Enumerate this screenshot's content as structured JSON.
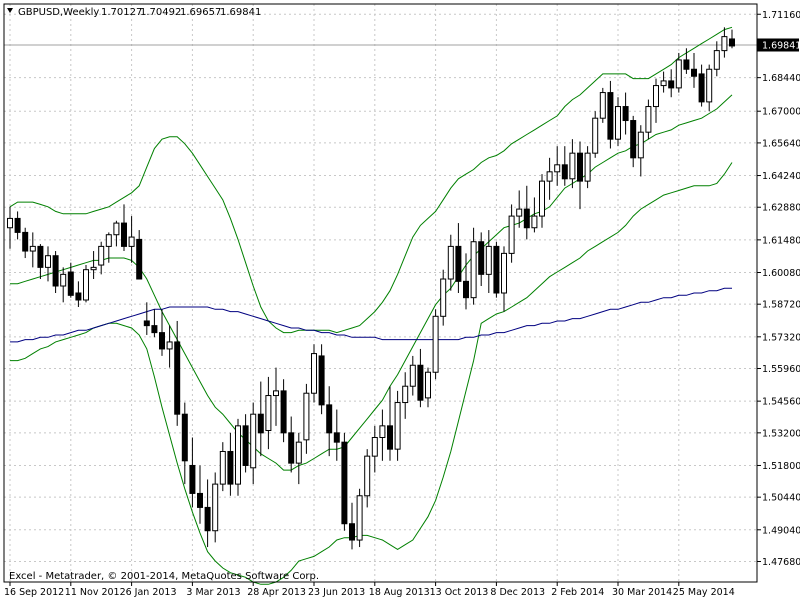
{
  "chart_data": {
    "type": "candlestick",
    "symbol": "GBPUSD,Weekly",
    "ohlc_header": {
      "open": "1.70127",
      "high": "1.70492",
      "low": "1.69657",
      "close": "1.69841"
    },
    "current_price_label": "1.69841",
    "copyright": "Excel - Metatrader, © 2001-2014, MetaQuotes Software Corp.",
    "ylim": [
      1.468,
      1.716
    ],
    "y_ticks": [
      "1.71160",
      "1.69841",
      "1.68440",
      "1.67000",
      "1.65640",
      "1.64240",
      "1.62880",
      "1.61480",
      "1.60080",
      "1.58720",
      "1.57320",
      "1.55960",
      "1.54560",
      "1.53200",
      "1.51800",
      "1.50440",
      "1.49040",
      "1.47680"
    ],
    "y_tick_values": [
      1.7116,
      1.69841,
      1.6844,
      1.67,
      1.6564,
      1.6424,
      1.6288,
      1.6148,
      1.6008,
      1.5872,
      1.5732,
      1.5596,
      1.5456,
      1.532,
      1.518,
      1.5044,
      1.4904,
      1.4768
    ],
    "x_ticks": [
      "16 Sep 2012",
      "11 Nov 2012",
      "6 Jan 2013",
      "3 Mar 2013",
      "28 Apr 2013",
      "23 Jun 2013",
      "18 Aug 2013",
      "13 Oct 2013",
      "8 Dec 2013",
      "2 Feb 2014",
      "30 Mar 2014",
      "25 May 2014"
    ],
    "x_tick_index": [
      0,
      8,
      16,
      24,
      32,
      40,
      48,
      56,
      64,
      72,
      80,
      88
    ],
    "candles": [
      [
        1.62,
        1.629,
        1.611,
        1.624
      ],
      [
        1.624,
        1.627,
        1.615,
        1.618
      ],
      [
        1.618,
        1.62,
        1.607,
        1.61
      ],
      [
        1.61,
        1.618,
        1.603,
        1.612
      ],
      [
        1.612,
        1.613,
        1.598,
        1.603
      ],
      [
        1.603,
        1.612,
        1.597,
        1.608
      ],
      [
        1.608,
        1.61,
        1.592,
        1.595
      ],
      [
        1.595,
        1.603,
        1.588,
        1.6
      ],
      [
        1.601,
        1.605,
        1.59,
        1.591
      ],
      [
        1.592,
        1.597,
        1.586,
        1.589
      ],
      [
        1.589,
        1.604,
        1.588,
        1.602
      ],
      [
        1.602,
        1.61,
        1.598,
        1.603
      ],
      [
        1.604,
        1.614,
        1.6,
        1.612
      ],
      [
        1.612,
        1.618,
        1.605,
        1.617
      ],
      [
        1.617,
        1.623,
        1.612,
        1.622
      ],
      [
        1.622,
        1.63,
        1.61,
        1.612
      ],
      [
        1.612,
        1.625,
        1.605,
        1.616
      ],
      [
        1.615,
        1.619,
        1.598,
        1.598
      ],
      [
        1.58,
        1.588,
        1.574,
        1.578
      ],
      [
        1.578,
        1.585,
        1.573,
        1.575
      ],
      [
        1.575,
        1.585,
        1.565,
        1.568
      ],
      [
        1.568,
        1.578,
        1.56,
        1.571
      ],
      [
        1.571,
        1.58,
        1.535,
        1.54
      ],
      [
        1.54,
        1.545,
        1.51,
        1.52
      ],
      [
        1.518,
        1.53,
        1.5,
        1.506
      ],
      [
        1.506,
        1.518,
        1.493,
        1.5
      ],
      [
        1.5,
        1.512,
        1.483,
        1.49
      ],
      [
        1.49,
        1.515,
        1.485,
        1.51
      ],
      [
        1.51,
        1.528,
        1.507,
        1.524
      ],
      [
        1.524,
        1.532,
        1.505,
        1.51
      ],
      [
        1.51,
        1.538,
        1.505,
        1.535
      ],
      [
        1.535,
        1.54,
        1.515,
        1.518
      ],
      [
        1.517,
        1.545,
        1.51,
        1.54
      ],
      [
        1.54,
        1.554,
        1.522,
        1.532
      ],
      [
        1.533,
        1.556,
        1.525,
        1.548
      ],
      [
        1.548,
        1.56,
        1.535,
        1.55
      ],
      [
        1.55,
        1.555,
        1.528,
        1.532
      ],
      [
        1.532,
        1.539,
        1.515,
        1.519
      ],
      [
        1.519,
        1.532,
        1.51,
        1.528
      ],
      [
        1.529,
        1.553,
        1.523,
        1.549
      ],
      [
        1.549,
        1.57,
        1.545,
        1.566
      ],
      [
        1.565,
        1.57,
        1.54,
        1.544
      ],
      [
        1.544,
        1.552,
        1.522,
        1.532
      ],
      [
        1.532,
        1.542,
        1.52,
        1.528
      ],
      [
        1.528,
        1.532,
        1.49,
        1.493
      ],
      [
        1.493,
        1.502,
        1.482,
        1.486
      ],
      [
        1.486,
        1.508,
        1.483,
        1.505
      ],
      [
        1.505,
        1.525,
        1.5,
        1.522
      ],
      [
        1.522,
        1.535,
        1.515,
        1.53
      ],
      [
        1.53,
        1.542,
        1.52,
        1.535
      ],
      [
        1.535,
        1.552,
        1.52,
        1.525
      ],
      [
        1.525,
        1.55,
        1.52,
        1.545
      ],
      [
        1.545,
        1.558,
        1.538,
        1.552
      ],
      [
        1.552,
        1.565,
        1.548,
        1.561
      ],
      [
        1.561,
        1.568,
        1.543,
        1.546
      ],
      [
        1.547,
        1.56,
        1.543,
        1.558
      ],
      [
        1.558,
        1.585,
        1.555,
        1.582
      ],
      [
        1.582,
        1.602,
        1.578,
        1.598
      ],
      [
        1.598,
        1.617,
        1.593,
        1.612
      ],
      [
        1.612,
        1.622,
        1.592,
        1.597
      ],
      [
        1.597,
        1.609,
        1.585,
        1.59
      ],
      [
        1.59,
        1.62,
        1.587,
        1.614
      ],
      [
        1.614,
        1.618,
        1.595,
        1.6
      ],
      [
        1.6,
        1.619,
        1.592,
        1.612
      ],
      [
        1.612,
        1.614,
        1.59,
        1.592
      ],
      [
        1.592,
        1.612,
        1.584,
        1.609
      ],
      [
        1.609,
        1.63,
        1.605,
        1.625
      ],
      [
        1.625,
        1.636,
        1.62,
        1.628
      ],
      [
        1.628,
        1.638,
        1.615,
        1.62
      ],
      [
        1.62,
        1.633,
        1.618,
        1.625
      ],
      [
        1.625,
        1.643,
        1.62,
        1.64
      ],
      [
        1.64,
        1.65,
        1.632,
        1.644
      ],
      [
        1.644,
        1.655,
        1.638,
        1.647
      ],
      [
        1.647,
        1.655,
        1.638,
        1.641
      ],
      [
        1.641,
        1.658,
        1.637,
        1.652
      ],
      [
        1.652,
        1.657,
        1.628,
        1.64
      ],
      [
        1.64,
        1.655,
        1.637,
        1.652
      ],
      [
        1.652,
        1.67,
        1.65,
        1.667
      ],
      [
        1.667,
        1.68,
        1.665,
        1.678
      ],
      [
        1.678,
        1.683,
        1.654,
        1.658
      ],
      [
        1.658,
        1.676,
        1.655,
        1.672
      ],
      [
        1.672,
        1.678,
        1.66,
        1.666
      ],
      [
        1.666,
        1.668,
        1.646,
        1.65
      ],
      [
        1.65,
        1.664,
        1.642,
        1.661
      ],
      [
        1.661,
        1.675,
        1.658,
        1.672
      ],
      [
        1.672,
        1.684,
        1.665,
        1.681
      ],
      [
        1.681,
        1.687,
        1.678,
        1.683
      ],
      [
        1.683,
        1.688,
        1.676,
        1.68
      ],
      [
        1.68,
        1.695,
        1.678,
        1.692
      ],
      [
        1.692,
        1.697,
        1.686,
        1.688
      ],
      [
        1.688,
        1.695,
        1.68,
        1.685
      ],
      [
        1.686,
        1.69,
        1.672,
        1.674
      ],
      [
        1.674,
        1.69,
        1.67,
        1.688
      ],
      [
        1.688,
        1.7,
        1.685,
        1.696
      ],
      [
        1.696,
        1.706,
        1.693,
        1.702
      ],
      [
        1.701,
        1.705,
        1.697,
        1.698
      ]
    ],
    "series": [
      {
        "type": "bollinger_upper",
        "color": "#008000",
        "values": [
          1.629,
          1.631,
          1.631,
          1.631,
          1.63,
          1.629,
          1.627,
          1.626,
          1.626,
          1.626,
          1.626,
          1.627,
          1.628,
          1.629,
          1.631,
          1.633,
          1.635,
          1.638,
          1.646,
          1.654,
          1.658,
          1.659,
          1.659,
          1.656,
          1.652,
          1.647,
          1.642,
          1.637,
          1.632,
          1.624,
          1.615,
          1.605,
          1.595,
          1.586,
          1.58,
          1.577,
          1.575,
          1.575,
          1.576,
          1.576,
          1.576,
          1.576,
          1.576,
          1.575,
          1.576,
          1.577,
          1.578,
          1.581,
          1.584,
          1.588,
          1.593,
          1.6,
          1.608,
          1.616,
          1.621,
          1.624,
          1.627,
          1.632,
          1.637,
          1.641,
          1.643,
          1.645,
          1.648,
          1.65,
          1.651,
          1.653,
          1.656,
          1.658,
          1.66,
          1.662,
          1.664,
          1.666,
          1.668,
          1.672,
          1.675,
          1.677,
          1.68,
          1.683,
          1.686,
          1.686,
          1.686,
          1.686,
          1.684,
          1.684,
          1.684,
          1.686,
          1.688,
          1.69,
          1.693,
          1.695,
          1.697,
          1.699,
          1.701,
          1.703,
          1.705,
          1.706
        ]
      },
      {
        "type": "bollinger_middle",
        "color": "#008000",
        "values": [
          1.596,
          1.596,
          1.597,
          1.598,
          1.599,
          1.6,
          1.601,
          1.602,
          1.603,
          1.604,
          1.605,
          1.606,
          1.606,
          1.607,
          1.607,
          1.607,
          1.606,
          1.603,
          1.598,
          1.591,
          1.584,
          1.578,
          1.572,
          1.566,
          1.56,
          1.554,
          1.548,
          1.543,
          1.54,
          1.536,
          1.532,
          1.529,
          1.526,
          1.523,
          1.521,
          1.519,
          1.516,
          1.516,
          1.518,
          1.519,
          1.521,
          1.523,
          1.525,
          1.525,
          1.526,
          1.53,
          1.534,
          1.538,
          1.542,
          1.546,
          1.552,
          1.557,
          1.563,
          1.569,
          1.575,
          1.581,
          1.587,
          1.591,
          1.594,
          1.599,
          1.604,
          1.608,
          1.611,
          1.614,
          1.617,
          1.62,
          1.621,
          1.622,
          1.624,
          1.626,
          1.627,
          1.629,
          1.633,
          1.637,
          1.639,
          1.641,
          1.643,
          1.646,
          1.648,
          1.65,
          1.652,
          1.653,
          1.655,
          1.656,
          1.658,
          1.66,
          1.661,
          1.662,
          1.664,
          1.665,
          1.666,
          1.667,
          1.669,
          1.671,
          1.674,
          1.677
        ]
      },
      {
        "type": "bollinger_lower",
        "color": "#008000",
        "values": [
          1.563,
          1.563,
          1.564,
          1.566,
          1.568,
          1.569,
          1.571,
          1.572,
          1.573,
          1.574,
          1.575,
          1.577,
          1.578,
          1.579,
          1.579,
          1.578,
          1.577,
          1.574,
          1.568,
          1.556,
          1.543,
          1.531,
          1.519,
          1.508,
          1.498,
          1.489,
          1.481,
          1.477,
          1.474,
          1.472,
          1.471,
          1.47,
          1.468,
          1.467,
          1.467,
          1.468,
          1.47,
          1.473,
          1.477,
          1.478,
          1.479,
          1.481,
          1.483,
          1.486,
          1.487,
          1.487,
          1.488,
          1.488,
          1.487,
          1.486,
          1.484,
          1.482,
          1.484,
          1.486,
          1.491,
          1.496,
          1.503,
          1.513,
          1.524,
          1.537,
          1.55,
          1.563,
          1.579,
          1.581,
          1.583,
          1.584,
          1.586,
          1.588,
          1.59,
          1.593,
          1.596,
          1.599,
          1.601,
          1.603,
          1.605,
          1.607,
          1.61,
          1.612,
          1.614,
          1.616,
          1.618,
          1.621,
          1.625,
          1.628,
          1.63,
          1.632,
          1.634,
          1.635,
          1.636,
          1.637,
          1.638,
          1.638,
          1.638,
          1.639,
          1.643,
          1.648
        ]
      },
      {
        "type": "moving_average",
        "color": "#000080",
        "values": [
          1.571,
          1.571,
          1.572,
          1.572,
          1.573,
          1.573,
          1.574,
          1.574,
          1.575,
          1.576,
          1.576,
          1.577,
          1.578,
          1.579,
          1.58,
          1.581,
          1.582,
          1.583,
          1.584,
          1.585,
          1.585,
          1.586,
          1.586,
          1.586,
          1.586,
          1.586,
          1.586,
          1.585,
          1.585,
          1.584,
          1.584,
          1.583,
          1.582,
          1.581,
          1.58,
          1.579,
          1.578,
          1.577,
          1.577,
          1.576,
          1.576,
          1.575,
          1.575,
          1.574,
          1.574,
          1.573,
          1.573,
          1.573,
          1.573,
          1.572,
          1.572,
          1.572,
          1.572,
          1.572,
          1.572,
          1.572,
          1.572,
          1.572,
          1.572,
          1.572,
          1.573,
          1.573,
          1.574,
          1.574,
          1.575,
          1.575,
          1.576,
          1.577,
          1.578,
          1.578,
          1.579,
          1.579,
          1.58,
          1.58,
          1.581,
          1.581,
          1.582,
          1.583,
          1.584,
          1.585,
          1.585,
          1.586,
          1.587,
          1.588,
          1.588,
          1.589,
          1.59,
          1.59,
          1.591,
          1.591,
          1.592,
          1.592,
          1.593,
          1.593,
          1.594,
          1.594
        ]
      }
    ]
  }
}
